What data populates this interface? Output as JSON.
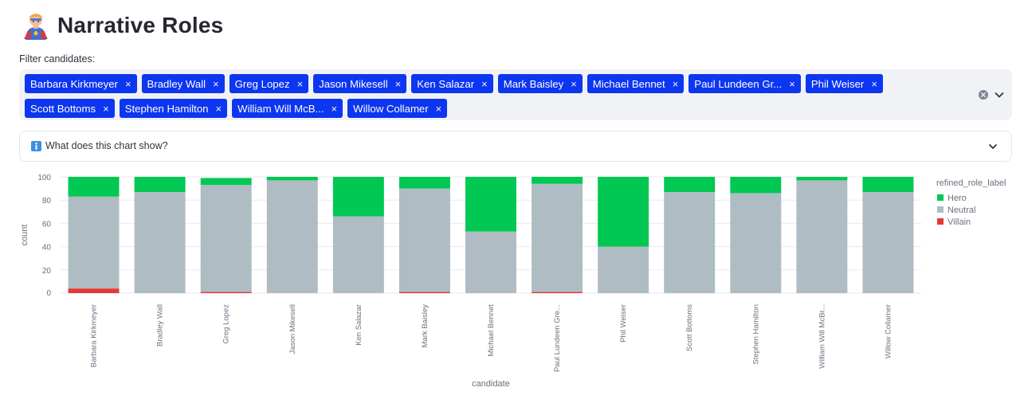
{
  "page": {
    "title": "Narrative Roles"
  },
  "filter": {
    "label": "Filter candidates:",
    "chips": [
      "Barbara Kirkmeyer",
      "Bradley Wall",
      "Greg Lopez",
      "Jason Mikesell",
      "Ken Salazar",
      "Mark Baisley",
      "Michael Bennet",
      "Paul Lundeen Gr...",
      "Phil Weiser",
      "Scott Bottoms",
      "Stephen Hamilton",
      "William Will McB...",
      "Willow Collamer"
    ],
    "remove_glyph": "×"
  },
  "expander": {
    "label": "What does this chart show?"
  },
  "colors": {
    "chip": "#0d36f0",
    "hero": "#00c853",
    "neutral": "#b0bcc4",
    "villain": "#e53935"
  },
  "chart_data": {
    "type": "bar",
    "stacked": true,
    "categories": [
      "Barbara Kirkmeyer",
      "Bradley Wall",
      "Greg Lopez",
      "Jason Mikesell",
      "Ken Salazar",
      "Mark Baisley",
      "Michael Bennet",
      "Paul Lundeen Gre...",
      "Phil Weiser",
      "Scott Bottoms",
      "Stephen Hamilton",
      "William Will McBr...",
      "Willow Collamer"
    ],
    "series": [
      {
        "name": "Villain",
        "color": "#e53935",
        "values": [
          4,
          0,
          1,
          0,
          0,
          1,
          0,
          1,
          0,
          0,
          0,
          0,
          0
        ]
      },
      {
        "name": "Neutral",
        "color": "#b0bcc4",
        "values": [
          79,
          87,
          92,
          97,
          66,
          89,
          53,
          93,
          40,
          87,
          86,
          97,
          87
        ]
      },
      {
        "name": "Hero",
        "color": "#00c853",
        "values": [
          17,
          13,
          6,
          3,
          34,
          10,
          47,
          6,
          60,
          13,
          14,
          3,
          13
        ]
      }
    ],
    "legend_order": [
      "Hero",
      "Neutral",
      "Villain"
    ],
    "xlabel": "candidate",
    "ylabel": "count",
    "legend_title": "refined_role_label",
    "yticks": [
      "0",
      "20",
      "40",
      "60",
      "80",
      "100"
    ],
    "ylim": [
      0,
      100
    ],
    "grid": true,
    "legend_position": "right"
  }
}
